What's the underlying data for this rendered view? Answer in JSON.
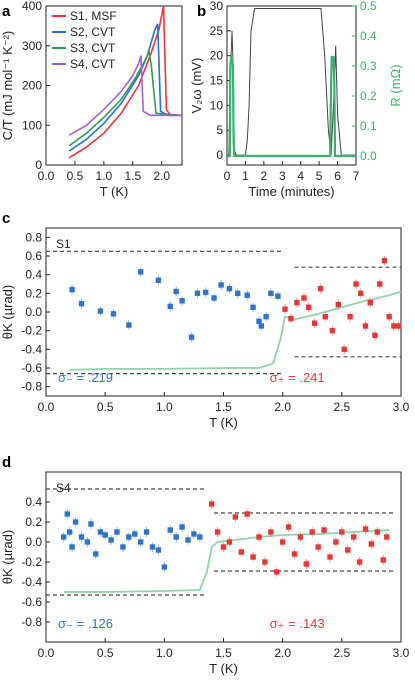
{
  "panel_labels": {
    "a": "a",
    "b": "b",
    "c": "c",
    "d": "d"
  },
  "colors": {
    "s1": "#e8353a",
    "s2": "#2a6fd6",
    "s3": "#2f9e55",
    "s4": "#a35ed9",
    "blue": "#2f74c8",
    "red": "#e53935",
    "green": "#3db06a",
    "mint": "#8fd4a8",
    "volt": "#444444",
    "dash": "#444444"
  },
  "chart_data": [
    {
      "id": "a",
      "type": "line",
      "xlabel": "T (K)",
      "ylabel": "C/T (mJ mol⁻¹ K⁻²)",
      "xlim": [
        0,
        2.35
      ],
      "ylim": [
        0,
        400
      ],
      "xticks": [
        0.0,
        0.5,
        1.0,
        1.5,
        2.0
      ],
      "xtick_labels": [
        "0.0",
        "0.5",
        "1.0",
        "1.5",
        "2.0"
      ],
      "yticks": [
        0,
        100,
        200,
        300,
        400
      ],
      "ytick_labels": [
        "0",
        "100",
        "200",
        "300",
        "400"
      ],
      "legend_position": "top-left",
      "series": [
        {
          "name": "S1, MSF",
          "color_key": "s1",
          "x": [
            0.4,
            0.7,
            1.0,
            1.3,
            1.6,
            1.8,
            1.95,
            2.03,
            2.08,
            2.15,
            2.35
          ],
          "y": [
            18,
            45,
            80,
            130,
            200,
            275,
            340,
            400,
            140,
            125,
            125
          ]
        },
        {
          "name": "S2, CVT",
          "color_key": "s2",
          "x": [
            0.4,
            0.7,
            1.0,
            1.3,
            1.6,
            1.75,
            1.88,
            1.93,
            1.98,
            2.1,
            2.35
          ],
          "y": [
            35,
            65,
            105,
            155,
            225,
            275,
            340,
            355,
            135,
            125,
            125
          ]
        },
        {
          "name": "S3, CVT",
          "color_key": "s3",
          "x": [
            0.4,
            0.7,
            1.0,
            1.3,
            1.55,
            1.7,
            1.78,
            1.82,
            1.9,
            2.35
          ],
          "y": [
            48,
            80,
            120,
            165,
            220,
            260,
            285,
            250,
            130,
            125
          ]
        },
        {
          "name": "S4, CVT",
          "color_key": "s4",
          "x": [
            0.4,
            0.7,
            1.0,
            1.3,
            1.5,
            1.6,
            1.64,
            1.68,
            1.8,
            2.35
          ],
          "y": [
            75,
            100,
            140,
            185,
            225,
            255,
            275,
            135,
            125,
            125
          ]
        }
      ]
    },
    {
      "id": "b",
      "type": "line",
      "xlabel": "Time (minutes)",
      "ylabel": "V₂ω (mV)",
      "ylabel_right": "R (mΩ)",
      "xlim": [
        0,
        7
      ],
      "ylim": [
        -2,
        30
      ],
      "ylim_right": [
        -0.03,
        0.5
      ],
      "xticks": [
        0,
        1,
        2,
        3,
        4,
        5,
        6,
        7
      ],
      "xtick_labels": [
        "0",
        "1",
        "2",
        "3",
        "4",
        "5",
        "6",
        "7"
      ],
      "yticks": [
        0,
        5,
        10,
        15,
        20,
        25,
        30
      ],
      "ytick_labels": [
        "0",
        "5",
        "10",
        "15",
        "20",
        "25",
        "30"
      ],
      "yticks_right": [
        0.0,
        0.1,
        0.2,
        0.3,
        0.4,
        0.5
      ],
      "ytick_labels_right": [
        "0.0",
        "0.1",
        "0.2",
        "0.3",
        "0.4",
        "0.5"
      ],
      "series": [
        {
          "name": "",
          "color_key": "volt",
          "axis": "left",
          "x": [
            0,
            0.1,
            0.2,
            0.27,
            0.33,
            0.4,
            0.5,
            1.0,
            1.1,
            1.2,
            1.3,
            1.5,
            1.8,
            2.2,
            5.0,
            5.1,
            5.3,
            5.5,
            5.65,
            5.8,
            5.9,
            6.0,
            6.2,
            6.4,
            7.0
          ],
          "y": [
            0,
            0,
            18,
            25,
            18,
            1,
            0,
            0,
            3,
            10,
            25,
            29.5,
            29.5,
            29.5,
            29.5,
            29.5,
            20,
            5,
            0,
            12,
            22,
            8,
            0,
            0,
            0
          ]
        },
        {
          "name": "",
          "color_key": "green",
          "axis": "right",
          "x": [
            0,
            0.15,
            0.18,
            0.22,
            0.28,
            0.32,
            0.36,
            0.4,
            5.6,
            5.64,
            5.68,
            5.72,
            5.78,
            5.82,
            5.86,
            7.0
          ],
          "y": [
            0,
            0,
            0.3,
            0.33,
            0.33,
            0.3,
            0.05,
            0,
            0,
            0.2,
            0.33,
            0.33,
            0.33,
            0.25,
            0,
            0
          ]
        }
      ]
    },
    {
      "id": "c",
      "type": "scatter",
      "title": "S1",
      "xlabel": "T (K)",
      "ylabel": "θK (µrad)",
      "xlim": [
        0,
        3.0
      ],
      "ylim": [
        -0.9,
        0.9
      ],
      "xticks": [
        0.0,
        0.5,
        1.0,
        1.5,
        2.0,
        2.5,
        3.0
      ],
      "xtick_labels": [
        "0.0",
        "0.5",
        "1.0",
        "1.5",
        "2.0",
        "2.5",
        "3.0"
      ],
      "yticks": [
        -0.8,
        -0.6,
        -0.4,
        -0.2,
        0.0,
        0.2,
        0.4,
        0.6,
        0.8
      ],
      "ytick_labels": [
        "-0.8",
        "-0.6",
        "-0.4",
        "-0.2",
        "0.0",
        "0.2",
        "0.4",
        "0.6",
        "0.8"
      ],
      "annotations": {
        "sigma_minus": "σ₋ = .219",
        "sigma_plus": "σ₊ = .241"
      },
      "dashed_lines": [
        {
          "x": [
            0.0,
            2.0
          ],
          "y": 0.65
        },
        {
          "x": [
            0.0,
            2.0
          ],
          "y": -0.66
        },
        {
          "x": [
            2.1,
            3.0
          ],
          "y": 0.48
        },
        {
          "x": [
            2.1,
            3.0
          ],
          "y": -0.48
        }
      ],
      "series": [
        {
          "name": "",
          "color_key": "blue",
          "x": [
            0.22,
            0.3,
            0.46,
            0.57,
            0.7,
            0.8,
            0.95,
            1.05,
            1.1,
            1.15,
            1.23,
            1.28,
            1.35,
            1.42,
            1.48,
            1.55,
            1.62,
            1.7,
            1.75,
            1.8,
            1.82,
            1.86,
            1.9,
            1.96
          ],
          "y": [
            0.24,
            0.09,
            0.01,
            -0.02,
            -0.14,
            0.43,
            0.34,
            0.06,
            0.22,
            0.12,
            -0.27,
            0.2,
            0.21,
            0.15,
            0.29,
            0.25,
            0.2,
            0.18,
            0.05,
            -0.1,
            -0.15,
            -0.05,
            0.2,
            0.17
          ]
        },
        {
          "name": "",
          "color_key": "red",
          "x": [
            2.02,
            2.07,
            2.12,
            2.18,
            2.22,
            2.27,
            2.32,
            2.36,
            2.42,
            2.47,
            2.52,
            2.57,
            2.62,
            2.66,
            2.7,
            2.74,
            2.78,
            2.82,
            2.86,
            2.9,
            2.94,
            2.98
          ],
          "y": [
            0.03,
            -0.07,
            0.1,
            0.15,
            0.05,
            -0.12,
            0.25,
            -0.05,
            -0.2,
            0.08,
            -0.4,
            -0.05,
            0.3,
            0.2,
            -0.15,
            0.1,
            -0.25,
            0.3,
            0.55,
            -0.05,
            -0.15,
            -0.15
          ]
        },
        {
          "name": "",
          "color_key": "mint",
          "line": true,
          "x": [
            0.2,
            0.5,
            1.0,
            1.5,
            1.8,
            1.92,
            1.98,
            2.02,
            2.1,
            2.3,
            2.5,
            2.7,
            2.9,
            3.0
          ],
          "y": [
            -0.62,
            -0.61,
            -0.61,
            -0.6,
            -0.6,
            -0.55,
            -0.3,
            -0.05,
            -0.08,
            -0.02,
            0.05,
            0.12,
            0.18,
            0.22
          ]
        }
      ]
    },
    {
      "id": "d",
      "type": "scatter",
      "title": "S4",
      "xlabel": "T (K)",
      "ylabel": "θK (µrad)",
      "xlim": [
        0,
        3.0
      ],
      "ylim": [
        -1.0,
        0.7
      ],
      "xticks": [
        0.0,
        0.5,
        1.0,
        1.5,
        2.0,
        2.5,
        3.0
      ],
      "xtick_labels": [
        "0.0",
        "0.5",
        "1.0",
        "1.5",
        "2.0",
        "2.5",
        "3.0"
      ],
      "yticks": [
        -0.8,
        -0.6,
        -0.4,
        -0.2,
        0.0,
        0.2,
        0.4
      ],
      "ytick_labels": [
        "-0.8",
        "-0.6",
        "-0.4",
        "-0.2",
        "0.0",
        "0.2",
        "0.4"
      ],
      "annotations": {
        "sigma_minus": "σ₋ = .126",
        "sigma_plus": "σ₊ = .143"
      },
      "dashed_lines": [
        {
          "x": [
            0.0,
            1.35
          ],
          "y": 0.53
        },
        {
          "x": [
            0.0,
            1.35
          ],
          "y": -0.53
        },
        {
          "x": [
            1.42,
            2.95
          ],
          "y": 0.29
        },
        {
          "x": [
            1.42,
            2.95
          ],
          "y": -0.29
        }
      ],
      "series": [
        {
          "name": "",
          "color_key": "blue",
          "x": [
            0.15,
            0.18,
            0.2,
            0.22,
            0.25,
            0.3,
            0.35,
            0.38,
            0.42,
            0.46,
            0.5,
            0.55,
            0.6,
            0.65,
            0.7,
            0.75,
            0.8,
            0.85,
            0.9,
            0.95,
            1.0,
            1.05,
            1.1,
            1.15,
            1.2,
            1.25,
            1.3
          ],
          "y": [
            0.05,
            0.28,
            0.1,
            -0.05,
            0.2,
            0.05,
            0.0,
            0.18,
            -0.12,
            0.1,
            0.07,
            0.02,
            0.1,
            -0.05,
            0.05,
            0.08,
            0.0,
            0.1,
            -0.05,
            -0.08,
            -0.25,
            0.12,
            0.05,
            0.15,
            0.02,
            0.08,
            0.05
          ]
        },
        {
          "name": "",
          "color_key": "red",
          "x": [
            1.4,
            1.45,
            1.5,
            1.55,
            1.6,
            1.65,
            1.7,
            1.75,
            1.8,
            1.85,
            1.9,
            1.95,
            2.0,
            2.05,
            2.1,
            2.15,
            2.2,
            2.25,
            2.3,
            2.35,
            2.4,
            2.45,
            2.5,
            2.55,
            2.6,
            2.65,
            2.7,
            2.75,
            2.8,
            2.85,
            2.88
          ],
          "y": [
            0.38,
            0.1,
            -0.05,
            0.0,
            0.25,
            -0.1,
            0.28,
            -0.15,
            0.05,
            -0.2,
            0.1,
            -0.3,
            0.0,
            0.15,
            -0.12,
            0.05,
            -0.22,
            0.1,
            -0.05,
            0.12,
            -0.15,
            0.0,
            0.1,
            -0.08,
            0.05,
            -0.2,
            0.13,
            -0.02,
            0.1,
            -0.18,
            0.05
          ]
        },
        {
          "name": "",
          "color_key": "mint",
          "line": true,
          "x": [
            0.15,
            0.5,
            1.0,
            1.3,
            1.36,
            1.4,
            1.45,
            1.6,
            1.8,
            2.0,
            2.3,
            2.6,
            2.9
          ],
          "y": [
            -0.5,
            -0.5,
            -0.49,
            -0.48,
            -0.3,
            -0.05,
            0.0,
            0.02,
            0.05,
            0.07,
            0.08,
            0.1,
            0.12
          ]
        }
      ]
    }
  ]
}
